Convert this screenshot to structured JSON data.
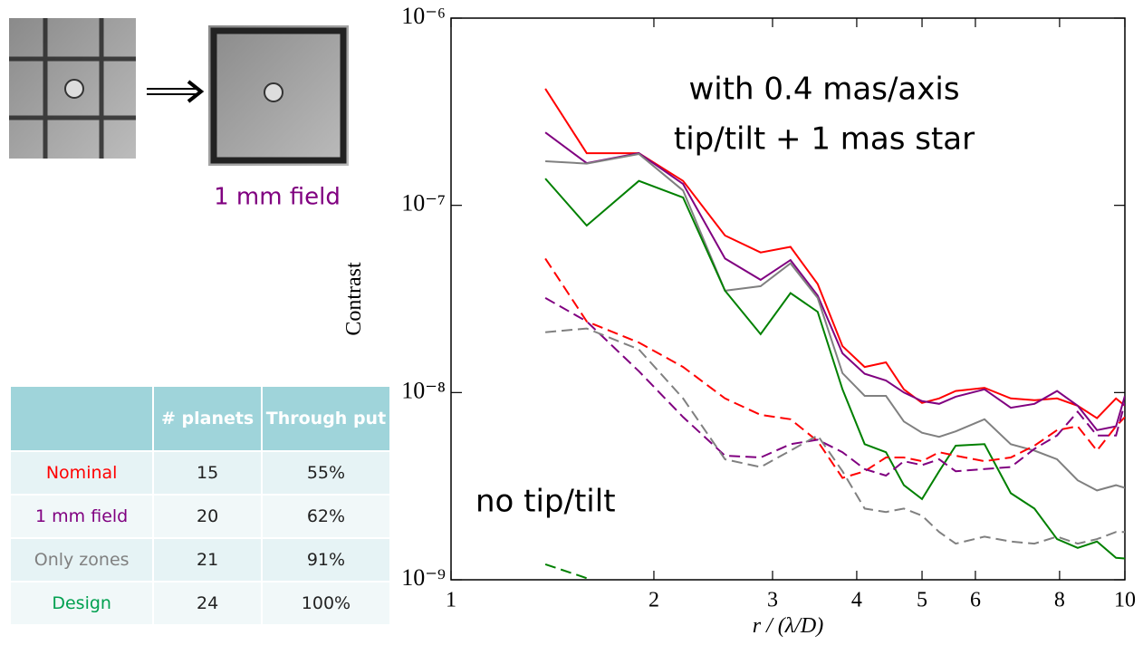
{
  "images": {
    "caption": "1 mm field"
  },
  "table": {
    "header": [
      "",
      "# planets",
      "Through put"
    ],
    "rows": [
      [
        "Nominal",
        "15",
        "55%"
      ],
      [
        "1 mm field",
        "20",
        "62%"
      ],
      [
        "Only zones",
        "21",
        "91%"
      ],
      [
        "Design",
        "24",
        "100%"
      ]
    ],
    "label_colors": [
      "#ff0000",
      "#800080",
      "#808080",
      "#00a050"
    ]
  },
  "chart_data": {
    "type": "line",
    "log_x": true,
    "log_y": true,
    "annotations": [
      "with 0.4 mas/axis",
      "tip/tilt + 1 mas star",
      "no tip/tilt"
    ],
    "ylabel": "Contrast",
    "xlabel": "r / (λ/D)",
    "xlim": [
      1,
      10
    ],
    "xticks": [
      1,
      2,
      3,
      4,
      5,
      6,
      8,
      10
    ],
    "ylim": [
      1e-09,
      1e-06
    ],
    "yticks": [
      {
        "value": 1e-09,
        "label": "10⁻⁹"
      },
      {
        "value": 1e-08,
        "label": "10⁻⁸"
      },
      {
        "value": 1e-07,
        "label": "10⁻⁷"
      },
      {
        "value": 1e-06,
        "label": "10⁻⁶"
      }
    ],
    "x": [
      1.38,
      1.59,
      1.9,
      2.21,
      2.55,
      2.88,
      3.19,
      3.5,
      3.81,
      4.11,
      4.42,
      4.7,
      5.0,
      5.3,
      5.61,
      6.19,
      6.77,
      7.34,
      7.93,
      8.51,
      9.09,
      9.7,
      10
    ],
    "series": [
      {
        "color": "#ff0000",
        "dashed": false,
        "values": [
          4.2e-07,
          1.9e-07,
          1.9e-07,
          1.35e-07,
          6.9e-08,
          5.6e-08,
          6e-08,
          3.8e-08,
          1.77e-08,
          1.37e-08,
          1.45e-08,
          1.04e-08,
          8.8e-09,
          9.3e-09,
          1.02e-08,
          1.06e-08,
          9.3e-09,
          9.1e-09,
          9.3e-09,
          8.5e-09,
          7.3e-09,
          9.3e-09,
          8.5e-09
        ]
      },
      {
        "color": "#800080",
        "dashed": false,
        "values": [
          2.45e-07,
          1.68e-07,
          1.9e-07,
          1.3e-07,
          5.2e-08,
          4e-08,
          5.1e-08,
          3.3e-08,
          1.62e-08,
          1.26e-08,
          1.16e-08,
          1e-08,
          9e-09,
          8.7e-09,
          9.5e-09,
          1.04e-08,
          8.3e-09,
          8.7e-09,
          1.02e-08,
          8.5e-09,
          6.3e-09,
          6.6e-09,
          9.6e-09
        ]
      },
      {
        "color": "#808080",
        "dashed": false,
        "values": [
          1.72e-07,
          1.67e-07,
          1.88e-07,
          1.2e-07,
          3.5e-08,
          3.7e-08,
          4.9e-08,
          3.2e-08,
          1.27e-08,
          9.6e-09,
          9.6e-09,
          7e-09,
          6.1e-09,
          5.8e-09,
          6.2e-09,
          7.2e-09,
          5.3e-09,
          4.9e-09,
          4.4e-09,
          3.4e-09,
          3e-09,
          3.2e-09,
          3.1e-09
        ]
      },
      {
        "color": "#008000",
        "dashed": false,
        "values": [
          1.39e-07,
          7.8e-08,
          1.35e-07,
          1.1e-07,
          3.5e-08,
          2.05e-08,
          3.4e-08,
          2.7e-08,
          1.04e-08,
          5.3e-09,
          4.8e-09,
          3.2e-09,
          2.7e-09,
          3.8e-09,
          5.2e-09,
          5.3e-09,
          2.9e-09,
          2.4e-09,
          1.65e-09,
          1.48e-09,
          1.6e-09,
          1.31e-09,
          1.3e-09
        ]
      },
      {
        "color": "#ff0000",
        "dashed": true,
        "values": [
          5.2e-08,
          2.4e-08,
          1.85e-08,
          1.37e-08,
          9.3e-09,
          7.6e-09,
          7.2e-09,
          5.5e-09,
          3.5e-09,
          3.8e-09,
          4.5e-09,
          4.5e-09,
          4.3e-09,
          4.8e-09,
          4.6e-09,
          4.3e-09,
          4.5e-09,
          5.2e-09,
          6.3e-09,
          6.6e-09,
          4.9e-09,
          6.6e-09,
          7.4e-09
        ]
      },
      {
        "color": "#800080",
        "dashed": true,
        "values": [
          3.2e-08,
          2.4e-08,
          1.3e-08,
          7.4e-09,
          4.6e-09,
          4.5e-09,
          5.3e-09,
          5.6e-09,
          4.8e-09,
          3.9e-09,
          3.6e-09,
          4.3e-09,
          4.1e-09,
          4.4e-09,
          3.8e-09,
          3.9e-09,
          4e-09,
          5e-09,
          5.9e-09,
          7.9e-09,
          5.9e-09,
          5.9e-09,
          8.8e-09
        ]
      },
      {
        "color": "#808080",
        "dashed": true,
        "values": [
          2.1e-08,
          2.2e-08,
          1.7e-08,
          9.3e-09,
          4.4e-09,
          4e-09,
          4.9e-09,
          5.9e-09,
          3.8e-09,
          2.4e-09,
          2.3e-09,
          2.4e-09,
          2.2e-09,
          1.8e-09,
          1.56e-09,
          1.7e-09,
          1.6e-09,
          1.56e-09,
          1.7e-09,
          1.56e-09,
          1.65e-09,
          1.8e-09,
          1.8e-09
        ]
      },
      {
        "color": "#008000",
        "dashed": true,
        "values": [
          1.21e-09,
          1.02e-09,
          null,
          null,
          null,
          null,
          null,
          null,
          null,
          null,
          null,
          null,
          null,
          null,
          null,
          null,
          null,
          null,
          null,
          null,
          null,
          null,
          null
        ]
      }
    ]
  }
}
